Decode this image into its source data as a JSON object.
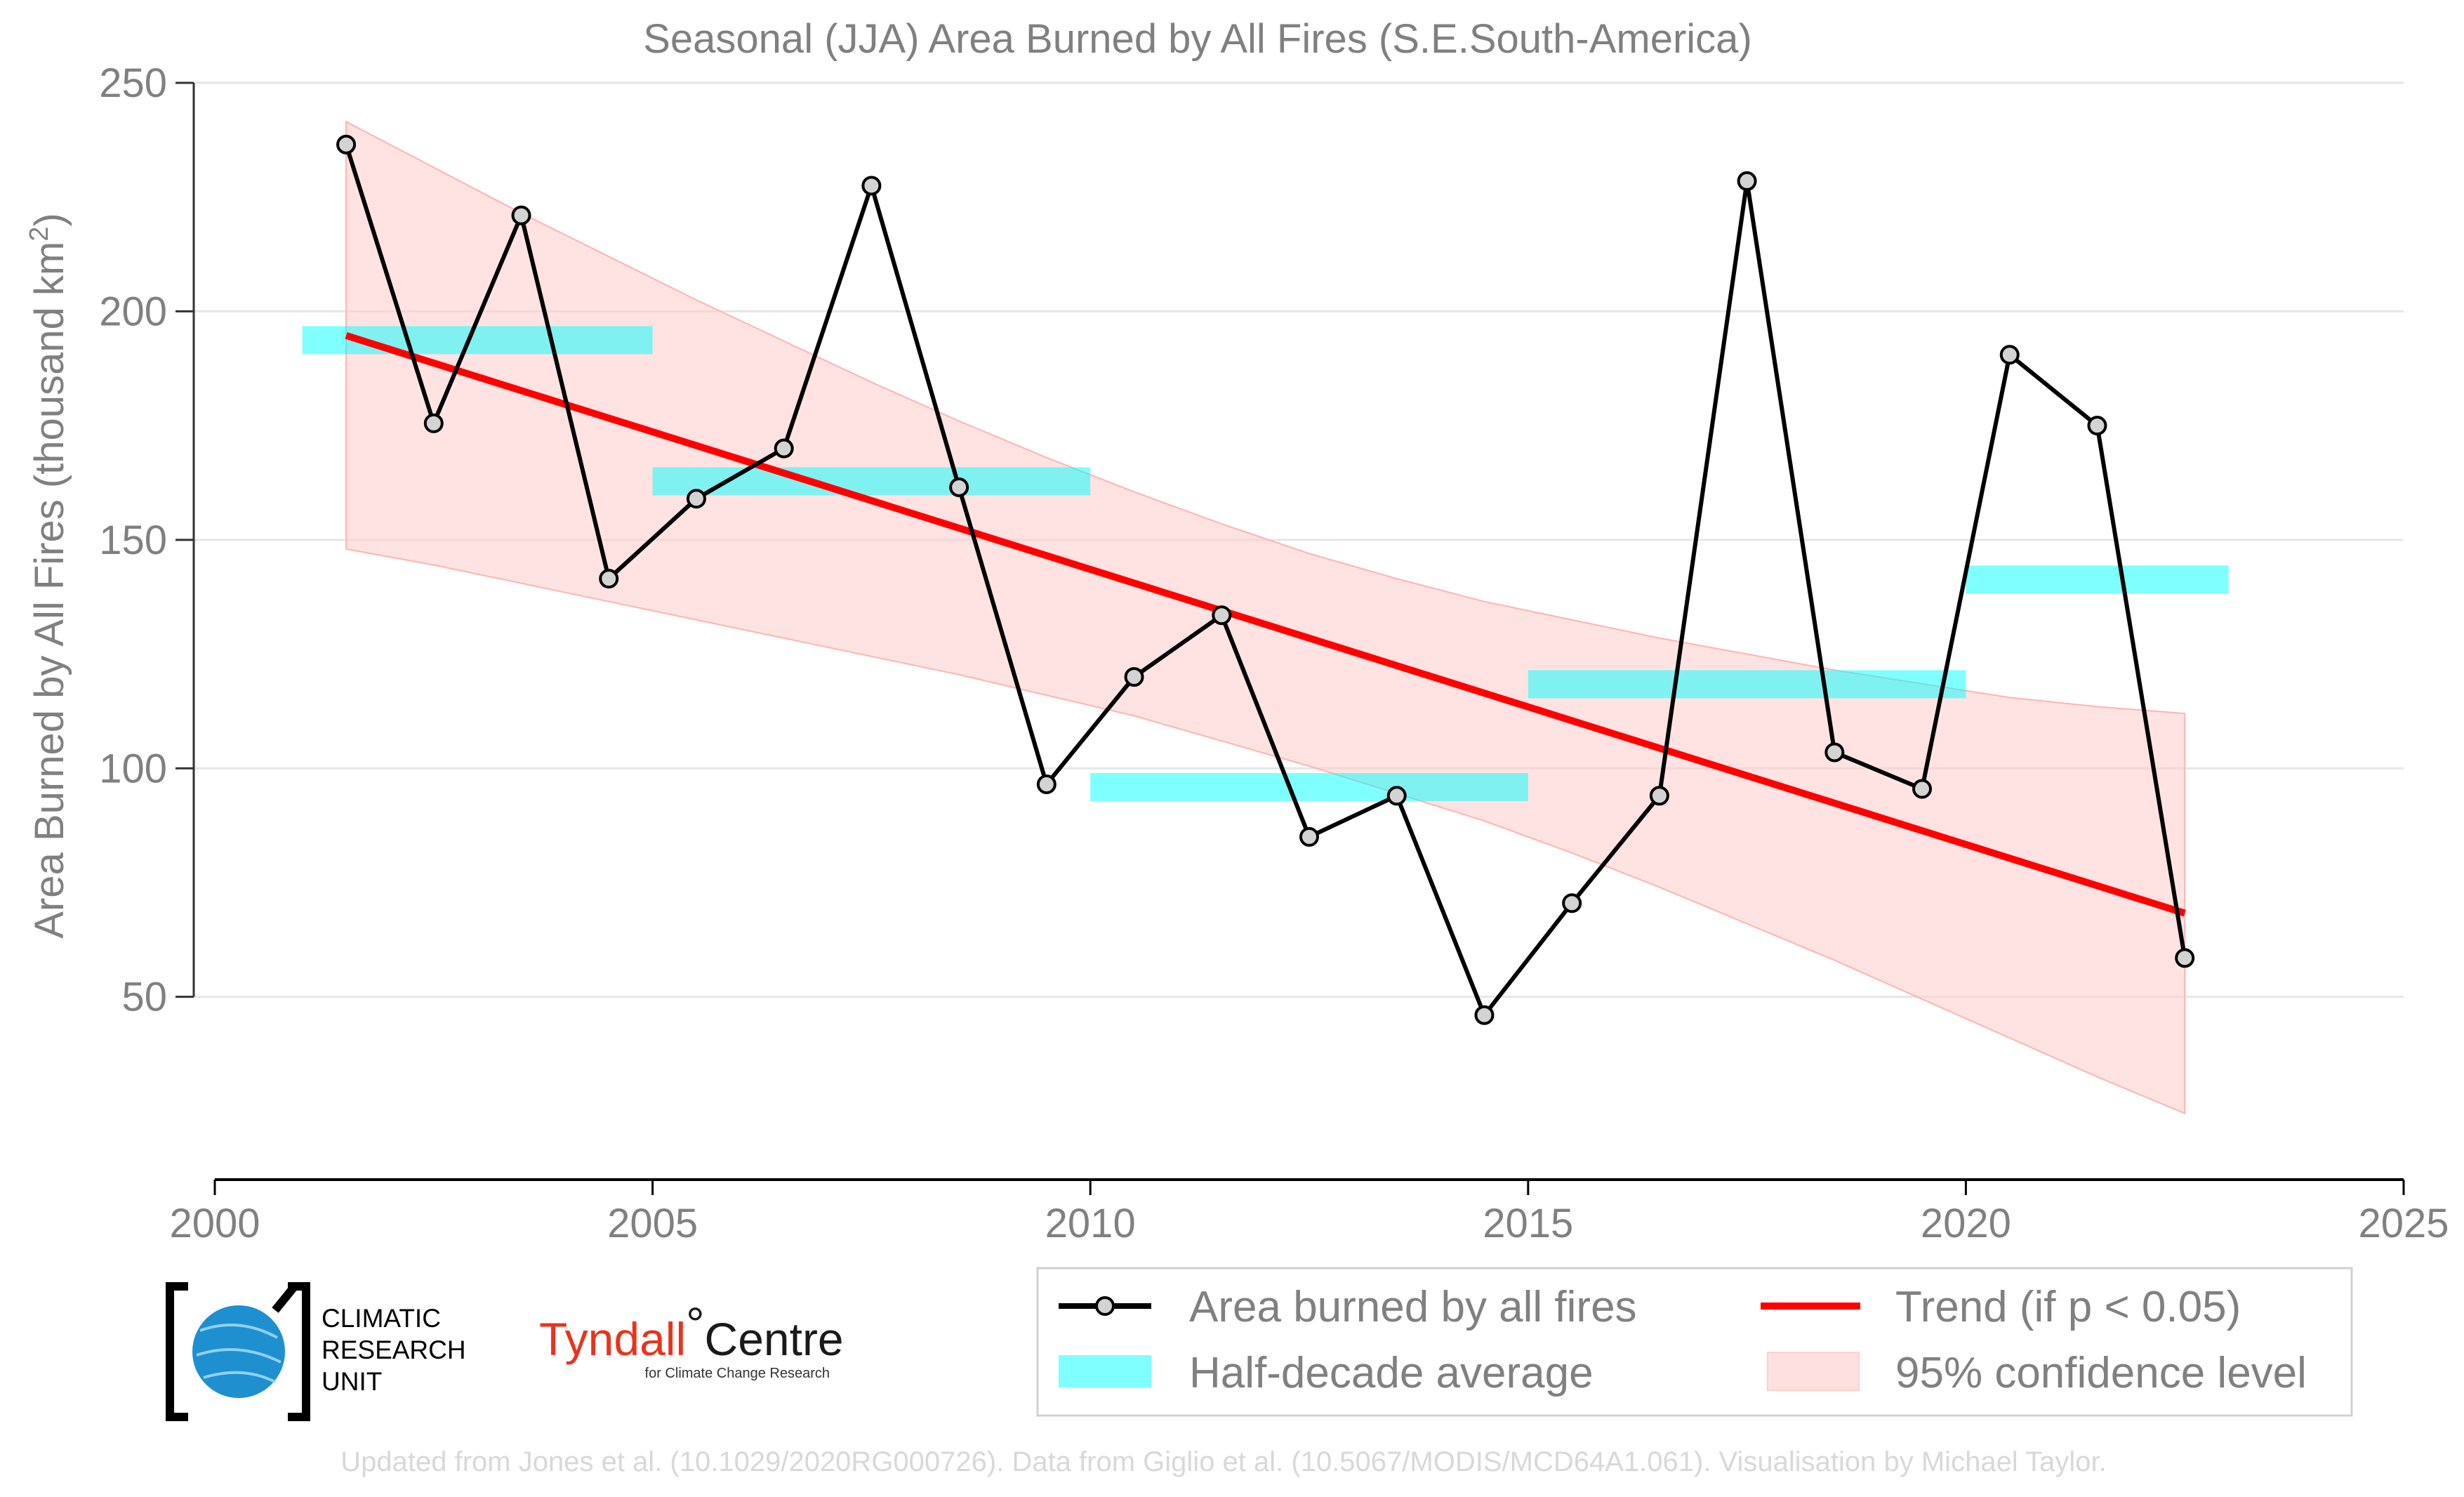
{
  "chart_data": {
    "type": "line",
    "title": "Seasonal (JJA) Area Burned by All Fires (S.E.South-America)",
    "ylabel": "Area Burned by All Fires (thousand km",
    "ylabel_sup": "2",
    "ylabel_close": ")",
    "xlim": [
      2000,
      2025
    ],
    "ylim": [
      10,
      250
    ],
    "xticks": [
      2000,
      2005,
      2010,
      2015,
      2020,
      2025
    ],
    "yticks": [
      50,
      100,
      150,
      200,
      250
    ],
    "grid": "horizontal",
    "series": [
      {
        "name": "Area burned by all fires",
        "x": [
          2001.5,
          2002.5,
          2003.5,
          2004.5,
          2005.5,
          2006.5,
          2007.5,
          2008.5,
          2009.5,
          2010.5,
          2011.5,
          2012.5,
          2013.5,
          2014.5,
          2015.5,
          2016.5,
          2017.5,
          2018.5,
          2019.5,
          2020.5,
          2021.5,
          2022.5
        ],
        "values": [
          236.5,
          175.5,
          221,
          141.5,
          159,
          170,
          227.5,
          161.5,
          96.5,
          120,
          133.5,
          85,
          94,
          46,
          70.5,
          94,
          228.5,
          103.5,
          95.5,
          190.5,
          175,
          58.5
        ],
        "color": "#000000"
      },
      {
        "name": "Half-decade average",
        "segments": [
          {
            "x": [
              2001.0,
              2005.0
            ],
            "value": 193.7
          },
          {
            "x": [
              2005.0,
              2010.0
            ],
            "value": 162.8
          },
          {
            "x": [
              2010.0,
              2015.0
            ],
            "value": 95.9
          },
          {
            "x": [
              2015.0,
              2020.0
            ],
            "value": 118.4
          },
          {
            "x": [
              2020.0,
              2023.0
            ],
            "value": 141.3
          }
        ],
        "color": "#00ffff"
      },
      {
        "name": "Trend (if p < 0.05)",
        "x": [
          2001.5,
          2022.5
        ],
        "values": [
          194.7,
          68.3
        ],
        "color": "#ff0000"
      },
      {
        "name": "95% confidence level",
        "x": [
          2001.5,
          2002.5,
          2003.5,
          2004.5,
          2005.5,
          2006.5,
          2007.5,
          2008.5,
          2009.5,
          2010.5,
          2011.5,
          2012.5,
          2013.5,
          2014.5,
          2015.5,
          2016.5,
          2017.5,
          2018.5,
          2019.5,
          2020.5,
          2021.5,
          2022.5
        ],
        "upper": [
          241.5,
          231.5,
          221.5,
          212,
          202.5,
          193.5,
          184.5,
          176,
          168,
          160.5,
          153.5,
          147,
          141.5,
          136.5,
          132.5,
          128.5,
          125,
          121.5,
          118.5,
          115.5,
          113.5,
          112
        ],
        "lower": [
          148,
          144.5,
          140.5,
          136.5,
          132.5,
          128.5,
          124.5,
          120.5,
          116,
          111.5,
          106,
          100.5,
          94.5,
          88.5,
          81.5,
          74,
          66,
          58,
          49.5,
          41,
          32.5,
          24.5
        ],
        "color": "#ffcccc"
      }
    ],
    "legend": {
      "placement": "bottom-right",
      "entries": [
        "Area burned by all fires",
        "Trend (if p < 0.05)",
        "Half-decade average",
        "95% confidence level"
      ]
    }
  },
  "logos": {
    "cru_lines": [
      "CLIMATIC",
      "RESEARCH",
      "UNIT"
    ],
    "tyndall_main": "Tyndall",
    "tyndall_degree": "°",
    "tyndall_centre": "Centre",
    "tyndall_sub": "for Climate Change Research"
  },
  "credit": "Updated from Jones et al. (10.1029/2020RG000726). Data from Giglio et al. (10.5067/MODIS/MCD64A1.061). Visualisation by Michael Taylor."
}
